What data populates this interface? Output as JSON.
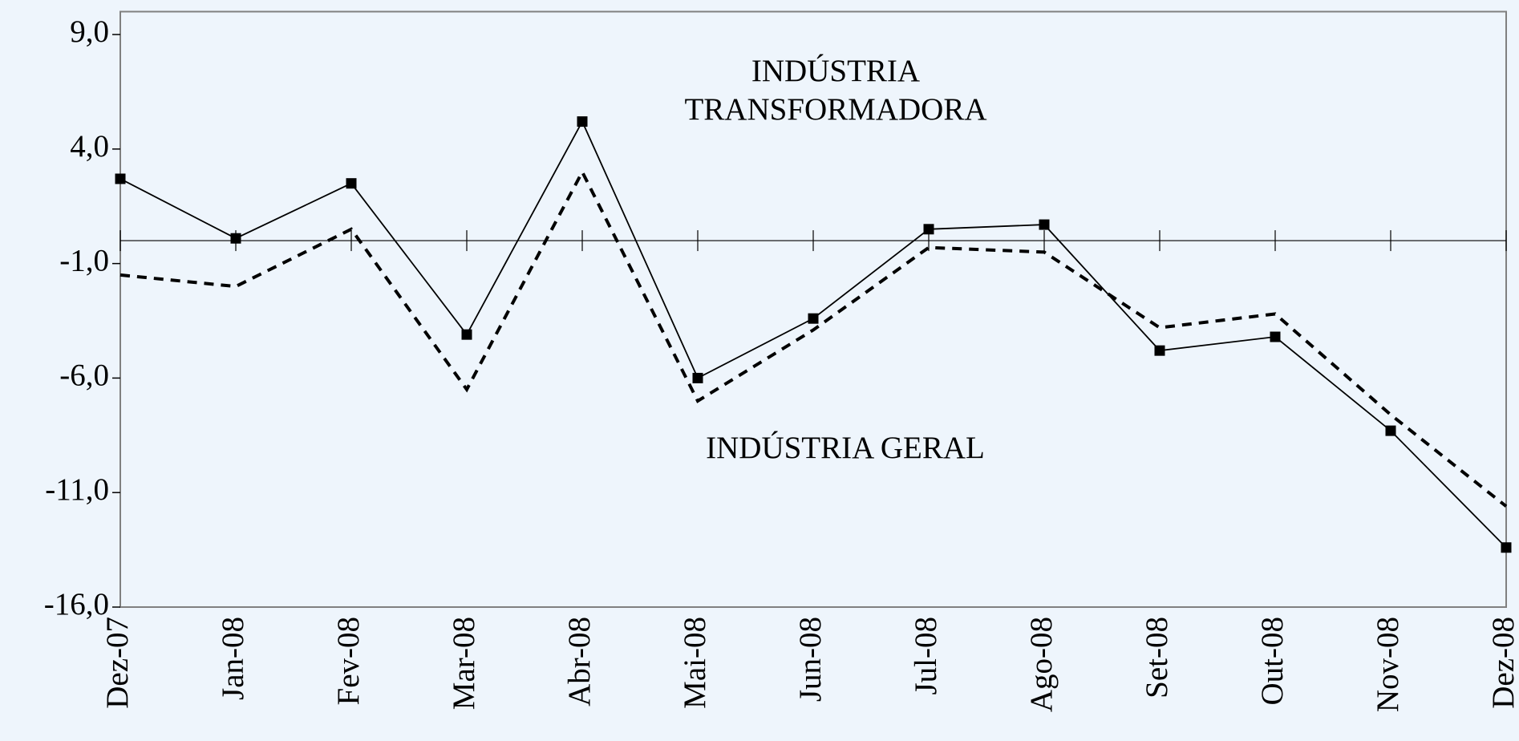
{
  "chart_data": {
    "type": "line",
    "categories": [
      "Dez-07",
      "Jan-08",
      "Fev-08",
      "Mar-08",
      "Abr-08",
      "Mai-08",
      "Jun-08",
      "Jul-08",
      "Ago-08",
      "Set-08",
      "Out-08",
      "Nov-08",
      "Dez-08"
    ],
    "series": [
      {
        "name": "INDÚSTRIA TRANSFORMADORA",
        "color": "#000000",
        "style": "solid",
        "marker": "square",
        "values": [
          2.7,
          0.1,
          2.5,
          -4.1,
          5.2,
          -6.0,
          -3.4,
          0.5,
          0.7,
          -4.8,
          -4.2,
          -8.3,
          -13.4
        ]
      },
      {
        "name": "INDÚSTRIA GERAL",
        "color": "#000000",
        "style": "dashed",
        "marker": "none",
        "values": [
          -1.5,
          -2.0,
          0.5,
          -6.5,
          3.0,
          -7.0,
          -3.9,
          -0.3,
          -0.5,
          -3.8,
          -3.2,
          -7.6,
          -11.6
        ]
      }
    ],
    "ylim": [
      -16,
      10
    ],
    "yticks": [
      {
        "value": 9,
        "label": "9,0"
      },
      {
        "value": 4,
        "label": "4,0"
      },
      {
        "value": -1,
        "label": "-1,0"
      },
      {
        "value": -6,
        "label": "-6,0"
      },
      {
        "value": -11,
        "label": "-11,0"
      },
      {
        "value": -16,
        "label": "-16,0"
      }
    ],
    "zero_line": true,
    "grid": false
  }
}
